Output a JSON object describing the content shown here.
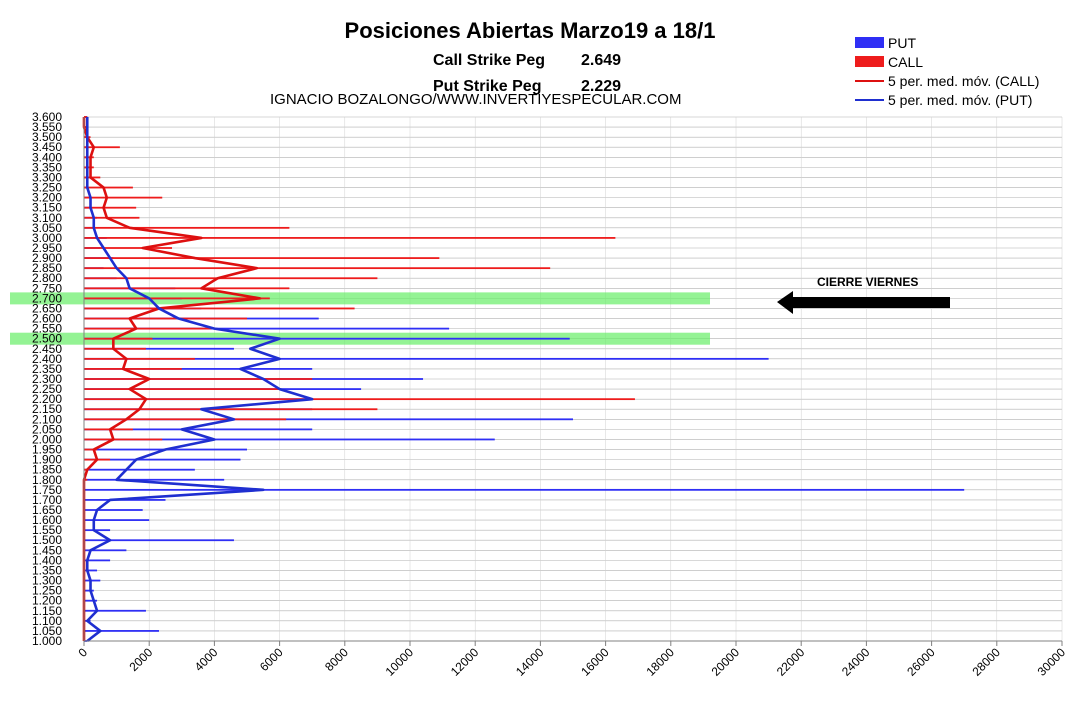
{
  "page": {
    "title": "Posiciones Abiertas Marzo19 a 18/1",
    "call_peg_label": "Call Strike Peg",
    "call_peg_value": "2.649",
    "put_peg_label": "Put Strike Peg",
    "put_peg_value": "2.229",
    "subtitle": "IGNACIO BOZALONGO/WWW.INVERTIYESPECULAR.COM",
    "annotation": "CIERRE VIERNES"
  },
  "legend": {
    "put": "PUT",
    "call": "CALL",
    "call_ma": "5 per. med. móv. (CALL)",
    "put_ma": "5 per. med. móv. (PUT)"
  },
  "colors": {
    "put": "#2f2ff5",
    "call": "#ee1c1c",
    "put_ma": "#1f2fd0",
    "call_ma": "#dd1010",
    "highlight": "#66ee66",
    "arrow": "#000000",
    "grid": "#b0b0b0"
  },
  "chart_data": {
    "type": "bar",
    "orientation": "horizontal",
    "grid": true,
    "legend_position": "top-right",
    "xlim": [
      0,
      30000
    ],
    "ylim": [
      1.0,
      3.6
    ],
    "x_ticks": [
      "0",
      "2000",
      "4000",
      "6000",
      "8000",
      "10000",
      "12000",
      "14000",
      "16000",
      "18000",
      "20000",
      "22000",
      "24000",
      "26000",
      "28000",
      "30000"
    ],
    "y_ticks": [
      "1.000",
      "1.050",
      "1.100",
      "1.150",
      "1.200",
      "1.250",
      "1.300",
      "1.350",
      "1.400",
      "1.450",
      "1.500",
      "1.550",
      "1.600",
      "1.650",
      "1.700",
      "1.750",
      "1.800",
      "1.850",
      "1.900",
      "1.950",
      "2.000",
      "2.050",
      "2.100",
      "2.150",
      "2.200",
      "2.250",
      "2.300",
      "2.350",
      "2.400",
      "2.450",
      "2.500",
      "2.550",
      "2.600",
      "2.650",
      "2.700",
      "2.750",
      "2.800",
      "2.850",
      "2.900",
      "2.950",
      "3.000",
      "3.050",
      "3.100",
      "3.150",
      "3.200",
      "3.250",
      "3.300",
      "3.350",
      "3.400",
      "3.450",
      "3.500",
      "3.550",
      "3.600"
    ],
    "highlighted_strikes": [
      2.7,
      2.5
    ],
    "series": [
      {
        "name": "PUT",
        "type": "bar",
        "strikes": [
          1.0,
          1.05,
          1.1,
          1.15,
          1.2,
          1.25,
          1.3,
          1.35,
          1.4,
          1.45,
          1.5,
          1.55,
          1.6,
          1.65,
          1.7,
          1.75,
          1.8,
          1.85,
          1.9,
          1.95,
          2.0,
          2.05,
          2.1,
          2.15,
          2.2,
          2.25,
          2.3,
          2.35,
          2.4,
          2.45,
          2.5,
          2.55,
          2.6,
          2.65,
          2.7,
          2.75,
          2.8,
          2.85,
          2.9,
          2.95,
          3.0,
          3.05,
          3.1,
          3.15,
          3.2,
          3.25,
          3.3,
          3.35,
          3.4,
          3.45,
          3.5,
          3.55,
          3.6
        ],
        "values": [
          100,
          2300,
          200,
          1900,
          400,
          300,
          500,
          400,
          800,
          1300,
          4600,
          800,
          2000,
          1800,
          2500,
          27000,
          4300,
          3400,
          4800,
          5000,
          12600,
          7000,
          15000,
          7000,
          7000,
          8500,
          10400,
          7000,
          21000,
          4600,
          14900,
          11200,
          7200,
          3600,
          3000,
          2800,
          1000,
          600,
          900,
          500,
          700,
          300,
          400,
          200,
          200,
          100,
          100,
          100,
          100,
          100,
          100,
          100,
          100
        ]
      },
      {
        "name": "CALL",
        "type": "bar",
        "strikes": [
          1.0,
          1.05,
          1.1,
          1.15,
          1.2,
          1.25,
          1.3,
          1.35,
          1.4,
          1.45,
          1.5,
          1.55,
          1.6,
          1.65,
          1.7,
          1.75,
          1.8,
          1.85,
          1.9,
          1.95,
          2.0,
          2.05,
          2.1,
          2.15,
          2.2,
          2.25,
          2.3,
          2.35,
          2.4,
          2.45,
          2.5,
          2.55,
          2.6,
          2.65,
          2.7,
          2.75,
          2.8,
          2.85,
          2.9,
          2.95,
          3.0,
          3.05,
          3.1,
          3.15,
          3.2,
          3.25,
          3.3,
          3.35,
          3.4,
          3.45,
          3.5,
          3.55,
          3.6
        ],
        "values": [
          0,
          0,
          0,
          0,
          0,
          0,
          0,
          0,
          0,
          0,
          0,
          0,
          0,
          0,
          0,
          0,
          100,
          100,
          800,
          400,
          2400,
          1500,
          6200,
          9000,
          16900,
          6000,
          7000,
          3000,
          3400,
          1900,
          2100,
          3900,
          5000,
          8300,
          5700,
          6300,
          9000,
          14300,
          10900,
          2700,
          16300,
          6300,
          1700,
          1600,
          2400,
          1500,
          500,
          300,
          300,
          1100,
          200,
          100,
          100
        ]
      },
      {
        "name": "5 per. med. móv. (CALL)",
        "type": "line",
        "strikes": [
          1.0,
          1.05,
          1.1,
          1.15,
          1.2,
          1.25,
          1.3,
          1.35,
          1.4,
          1.45,
          1.5,
          1.55,
          1.6,
          1.65,
          1.7,
          1.75,
          1.8,
          1.85,
          1.9,
          1.95,
          2.0,
          2.05,
          2.1,
          2.15,
          2.2,
          2.25,
          2.3,
          2.35,
          2.4,
          2.45,
          2.5,
          2.55,
          2.6,
          2.65,
          2.7,
          2.75,
          2.8,
          2.85,
          2.9,
          2.95,
          3.0,
          3.05,
          3.1,
          3.15,
          3.2,
          3.25,
          3.3,
          3.35,
          3.4,
          3.45,
          3.5,
          3.55,
          3.6
        ],
        "values": [
          0,
          0,
          0,
          0,
          0,
          0,
          0,
          0,
          0,
          0,
          0,
          0,
          0,
          0,
          0,
          0,
          0,
          100,
          400,
          300,
          900,
          800,
          1300,
          1700,
          1900,
          1400,
          2000,
          1200,
          1300,
          900,
          900,
          1600,
          1400,
          2300,
          5400,
          3600,
          4100,
          5300,
          3400,
          1800,
          3600,
          1400,
          700,
          600,
          700,
          600,
          200,
          200,
          200,
          300,
          100,
          0,
          0
        ]
      },
      {
        "name": "5 per. med. móv. (PUT)",
        "type": "line",
        "strikes": [
          1.0,
          1.05,
          1.1,
          1.15,
          1.2,
          1.25,
          1.3,
          1.35,
          1.4,
          1.45,
          1.5,
          1.55,
          1.6,
          1.65,
          1.7,
          1.75,
          1.8,
          1.85,
          1.9,
          1.95,
          2.0,
          2.05,
          2.1,
          2.15,
          2.2,
          2.25,
          2.3,
          2.35,
          2.4,
          2.45,
          2.5,
          2.55,
          2.6,
          2.65,
          2.7,
          2.75,
          2.8,
          2.85,
          2.9,
          2.95,
          3.0,
          3.05,
          3.1,
          3.15,
          3.2,
          3.25,
          3.3,
          3.35,
          3.4,
          3.45,
          3.5,
          3.55,
          3.6
        ],
        "values": [
          100,
          500,
          100,
          400,
          300,
          200,
          200,
          100,
          100,
          200,
          800,
          300,
          300,
          400,
          800,
          5500,
          1000,
          1300,
          1600,
          2500,
          4000,
          3000,
          4600,
          3600,
          7000,
          6000,
          5500,
          4800,
          6000,
          5100,
          6000,
          4000,
          2900,
          2300,
          2000,
          1400,
          1300,
          1000,
          800,
          600,
          400,
          300,
          300,
          200,
          200,
          100,
          100,
          100,
          100,
          100,
          100,
          100,
          100
        ]
      }
    ]
  }
}
